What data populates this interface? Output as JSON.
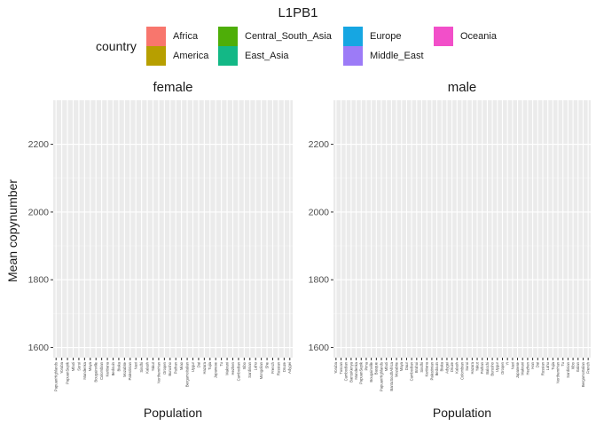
{
  "chart_data": {
    "type": "bar",
    "title": "L1PB1",
    "ylabel": "Mean copynumber",
    "xlabel": "Population",
    "ylim": [
      1570,
      2330
    ],
    "yticks": [
      1600,
      1800,
      2000,
      2200
    ],
    "ytick_labels": [
      "1600",
      "1800",
      "2000",
      "2200"
    ],
    "grid": true,
    "legend_placement": "top",
    "legend": {
      "title": "country",
      "entries": [
        {
          "name": "Africa",
          "color": "#F8766D"
        },
        {
          "name": "America",
          "color": "#B79F00"
        },
        {
          "name": "Central_South_Asia",
          "color": "#4EAE08"
        },
        {
          "name": "East_Asia",
          "color": "#13B886"
        },
        {
          "name": "Europe",
          "color": "#16A6E2"
        },
        {
          "name": "Middle_East",
          "color": "#9C7BF7"
        },
        {
          "name": "Oceania",
          "color": "#F24FC9"
        }
      ]
    },
    "panels": [
      {
        "strip": "female",
        "categories": [
          "PapuanHighlands",
          "Yoruba",
          "PapuanSepik",
          "Mbuti",
          "Surui",
          "Mandenka",
          "Maya",
          "Bougainville",
          "Colombian",
          "Karitiana",
          "Bedouin",
          "Biaka",
          "Mozabite",
          "Palestinian",
          "Naxi",
          "Sindhi",
          "Kalash",
          "Yakut",
          "NorthernHan",
          "Oroqen",
          "Burusho",
          "Pathan",
          "Miao",
          "BergamoItalian",
          "Uygur",
          "Dai",
          "Hazara",
          "Tujia",
          "Japanese",
          "Tu",
          "Makrani",
          "Hezhen",
          "Cambodian",
          "Xibo",
          "Sardinian",
          "Lahu",
          "Mongolian",
          "She",
          "French",
          "Russian",
          "Druze",
          "Adygei"
        ],
        "values": []
      },
      {
        "strip": "male",
        "categories": [
          "Yoruba",
          "Tuscan",
          "Cambodian",
          "BantuKenya",
          "Mandenka",
          "PapuanSepik",
          "Pima",
          "Bougainville",
          "Basque",
          "PapuanHighlands",
          "Mbuti",
          "BantuSouthAfrica",
          "Mozabite",
          "Maya",
          "Daur",
          "Cambodian",
          "Brahui",
          "Sindhi",
          "Karitiana",
          "Palestinian",
          "Bedouin",
          "Biaka",
          "Adygei",
          "Druze",
          "Kalash",
          "Colombian",
          "Surui",
          "Hazara",
          "Yakut",
          "Pathan",
          "Balochi",
          "Burusho",
          "Uygur",
          "Oroqen",
          "Yi",
          "Naxi",
          "Japanese",
          "Makrani",
          "Hezhen",
          "Han",
          "Dai",
          "Russian",
          "Lahu",
          "Tujia",
          "NorthernHan",
          "Tu",
          "Sardinian",
          "Xibo",
          "Italian",
          "BergamoItalian",
          "French"
        ],
        "values": []
      }
    ]
  }
}
